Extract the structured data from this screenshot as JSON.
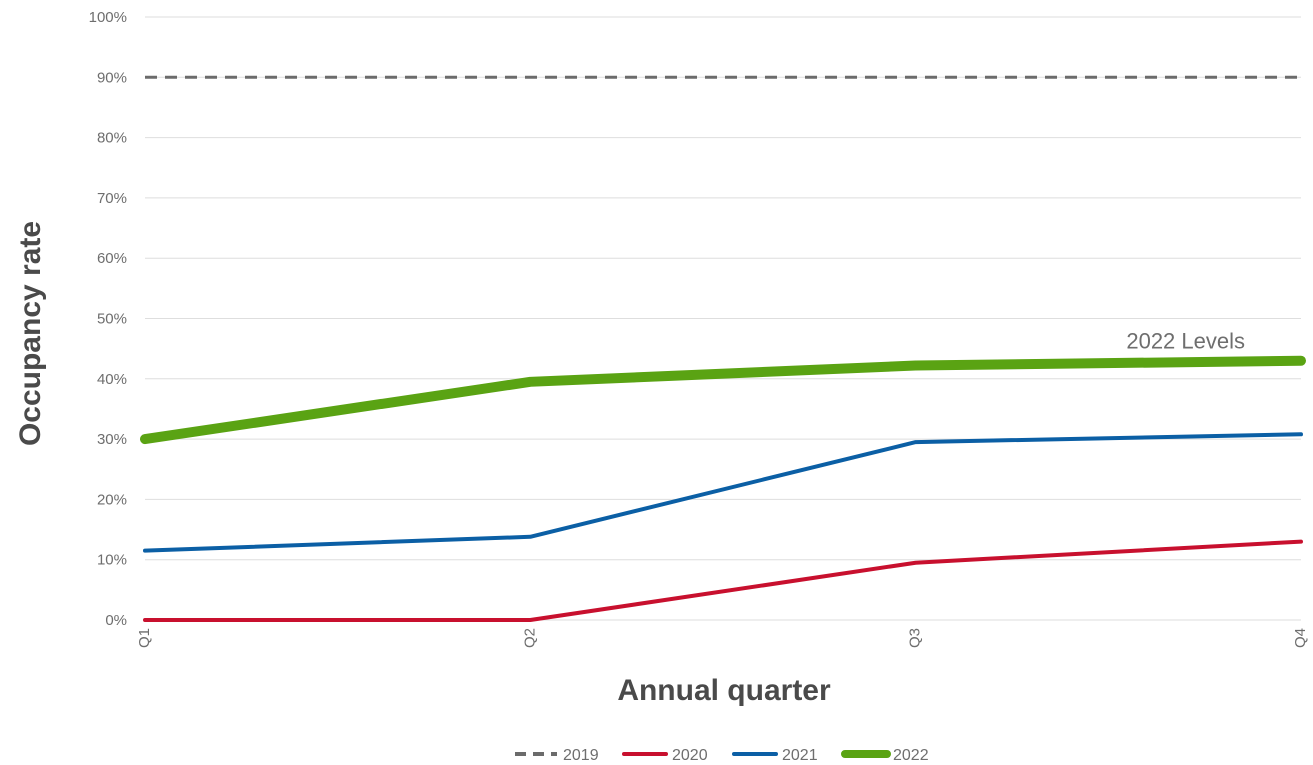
{
  "chart_data": {
    "type": "line",
    "title": "",
    "xlabel": "Annual quarter",
    "ylabel": "Occupancy rate",
    "categories": [
      "Q1",
      "Q2",
      "Q3",
      "Q4"
    ],
    "ylim": [
      0,
      100
    ],
    "y_ticks": [
      0,
      10,
      20,
      30,
      40,
      50,
      60,
      70,
      80,
      90,
      100
    ],
    "y_tick_format": "%",
    "grid": "horizontal",
    "legend_position": "bottom",
    "series": [
      {
        "name": "2019",
        "values": [
          90,
          90,
          90,
          90
        ],
        "color": "#6b6b6b",
        "style": "dashed"
      },
      {
        "name": "2020",
        "values": [
          0,
          0,
          9.5,
          13
        ],
        "color": "#c8102e",
        "style": "solid"
      },
      {
        "name": "2021",
        "values": [
          11.5,
          13.8,
          29.5,
          30.8
        ],
        "color": "#0b5fa5",
        "style": "solid"
      },
      {
        "name": "2022",
        "values": [
          30,
          39.5,
          42.2,
          43
        ],
        "color": "#5aa313",
        "style": "solid"
      }
    ],
    "annotations": [
      {
        "text": "2022 Levels",
        "x": "Q4",
        "y": 43
      }
    ]
  }
}
